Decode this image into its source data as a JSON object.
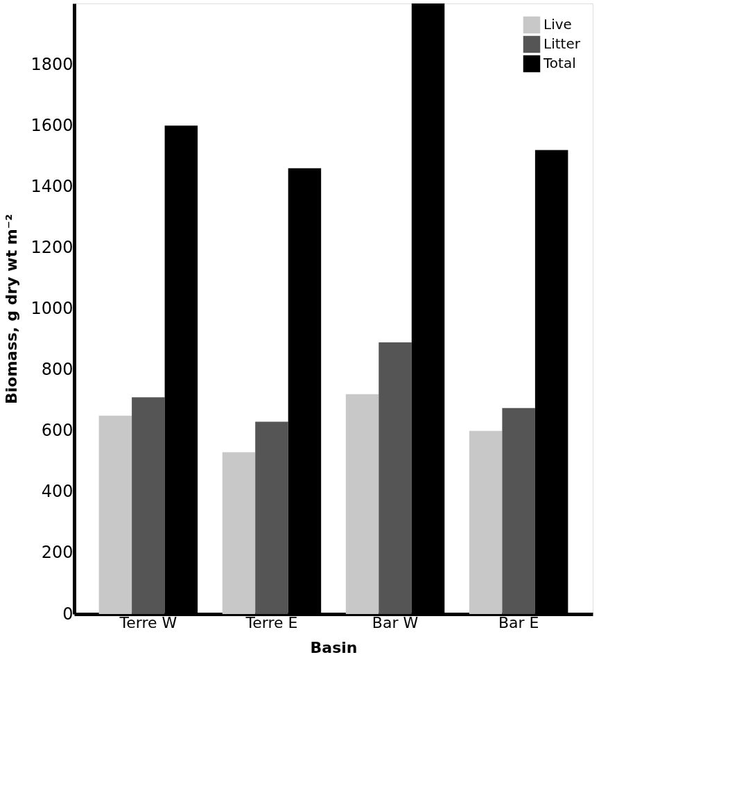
{
  "chart_data": {
    "type": "bar",
    "xlabel": "Basin",
    "ylabel": "Biomass, g dry wt m⁻²",
    "categories": [
      "Terre W",
      "Terre E",
      "Bar W",
      "Bar E"
    ],
    "series": [
      {
        "name": "Live",
        "color": "#c8c8c8",
        "values": [
          650,
          530,
          720,
          600
        ]
      },
      {
        "name": "Litter",
        "color": "#555555",
        "values": [
          710,
          630,
          890,
          675
        ]
      },
      {
        "name": "Total",
        "color": "#000000",
        "values": [
          1600,
          1460,
          2000,
          1520
        ]
      }
    ],
    "ylim": [
      0,
      2000
    ],
    "yticks": [
      0,
      200,
      400,
      600,
      800,
      1000,
      1200,
      1400,
      1600,
      1800
    ],
    "grid": false,
    "legend": "top right"
  }
}
